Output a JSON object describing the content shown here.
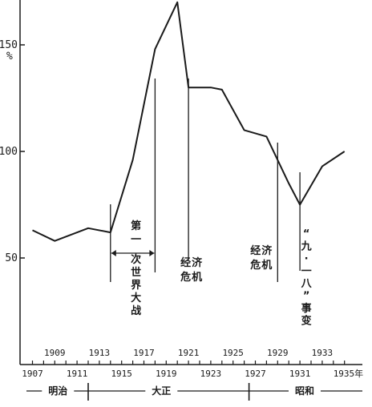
{
  "chart_data": {
    "type": "line",
    "title": "",
    "xlabel": "",
    "ylabel": "%",
    "ylim": [
      0,
      170
    ],
    "xlim": [
      1906.5,
      1936
    ],
    "yticks": [
      50,
      100,
      150
    ],
    "ytick_labels": [
      "50",
      "100",
      "150"
    ],
    "xticks_lower": [
      1907,
      1911,
      1915,
      1919,
      1923,
      1927,
      1931
    ],
    "xticks_lower_labels": [
      "1907",
      "1911",
      "1915",
      "1919",
      "1923",
      "1927",
      "1931"
    ],
    "xtick_last_label": "1935年",
    "xtick_last_value": 1935,
    "xticks_upper": [
      1909,
      1913,
      1917,
      1921,
      1925,
      1929,
      1933
    ],
    "xticks_upper_labels": [
      "1909",
      "1913",
      "1917",
      "1921",
      "1925",
      "1929",
      "1933"
    ],
    "series": [
      {
        "x": [
          1907,
          1909,
          1912,
          1914,
          1916,
          1918,
          1920,
          1921,
          1923,
          1924,
          1926,
          1928,
          1930,
          1931,
          1933,
          1935
        ],
        "values": [
          63,
          58,
          64,
          62,
          96,
          148,
          170,
          130,
          130,
          129,
          110,
          107,
          85,
          75,
          93,
          100
        ]
      }
    ],
    "annotations": [
      {
        "text": "第一次世界大战",
        "x_start": 1914,
        "x_end": 1918
      },
      {
        "text": "经济危机",
        "x": 1921
      },
      {
        "text": "经济危机",
        "x": 1929
      },
      {
        "text": "“九·一八”事变",
        "x": 1931
      }
    ],
    "eras": [
      {
        "label": "明治",
        "from": 1906.5,
        "to": 1912
      },
      {
        "label": "大正",
        "from": 1912,
        "to": 1926
      },
      {
        "label": "昭和",
        "from": 1926,
        "to": 1936
      }
    ],
    "grid": false
  }
}
